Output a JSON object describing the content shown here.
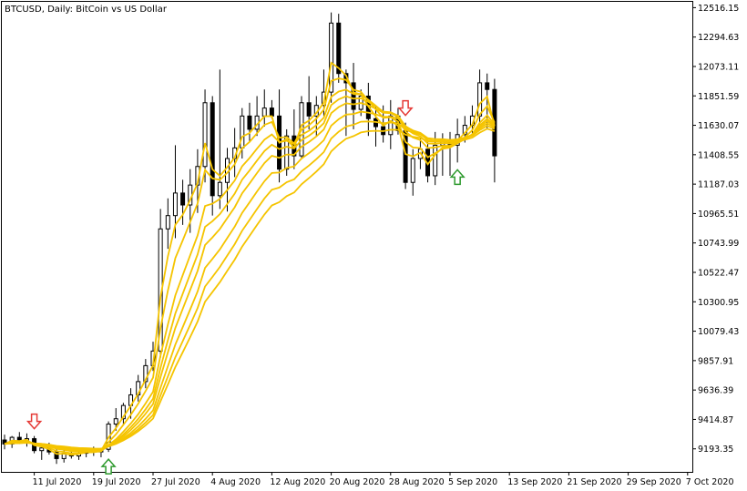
{
  "window": {
    "title": "BTCUSD, Daily:  BitCoin vs US Dollar"
  },
  "chart_data": {
    "type": "candlestick",
    "symbol": "BTCUSD",
    "timeframe": "Daily",
    "description": "BitCoin vs US Dollar",
    "ylim": [
      9020,
      12560
    ],
    "y_ticks": [
      "12516.15",
      "12294.63",
      "12073.11",
      "11851.59",
      "11630.07",
      "11408.55",
      "11187.03",
      "10965.51",
      "10743.99",
      "10522.47",
      "10300.95",
      "10079.43",
      "9857.91",
      "9636.39",
      "9414.87",
      "9193.35"
    ],
    "x_ticks": [
      {
        "label": "11 Jul 2020",
        "index": 4
      },
      {
        "label": "19 Jul 2020",
        "index": 12
      },
      {
        "label": "27 Jul 2020",
        "index": 20
      },
      {
        "label": "4 Aug 2020",
        "index": 28
      },
      {
        "label": "12 Aug 2020",
        "index": 36
      },
      {
        "label": "20 Aug 2020",
        "index": 44
      },
      {
        "label": "28 Aug 2020",
        "index": 52
      },
      {
        "label": "5 Sep 2020",
        "index": 60
      },
      {
        "label": "13 Sep 2020",
        "index": 68
      },
      {
        "label": "21 Sep 2020",
        "index": 76
      },
      {
        "label": "29 Sep 2020",
        "index": 84
      },
      {
        "label": "7 Oct 2020",
        "index": 92
      }
    ],
    "candles": [
      {
        "o": 9260,
        "h": 9300,
        "l": 9190,
        "c": 9230
      },
      {
        "o": 9230,
        "h": 9290,
        "l": 9200,
        "c": 9280
      },
      {
        "o": 9280,
        "h": 9320,
        "l": 9230,
        "c": 9250
      },
      {
        "o": 9250,
        "h": 9310,
        "l": 9210,
        "c": 9270
      },
      {
        "o": 9270,
        "h": 9290,
        "l": 9160,
        "c": 9180
      },
      {
        "o": 9180,
        "h": 9230,
        "l": 9110,
        "c": 9200
      },
      {
        "o": 9200,
        "h": 9240,
        "l": 9150,
        "c": 9170
      },
      {
        "o": 9170,
        "h": 9200,
        "l": 9080,
        "c": 9120
      },
      {
        "o": 9120,
        "h": 9190,
        "l": 9090,
        "c": 9160
      },
      {
        "o": 9160,
        "h": 9200,
        "l": 9120,
        "c": 9140
      },
      {
        "o": 9140,
        "h": 9180,
        "l": 9110,
        "c": 9160
      },
      {
        "o": 9160,
        "h": 9200,
        "l": 9130,
        "c": 9180
      },
      {
        "o": 9180,
        "h": 9210,
        "l": 9140,
        "c": 9170
      },
      {
        "o": 9170,
        "h": 9200,
        "l": 9130,
        "c": 9190
      },
      {
        "o": 9190,
        "h": 9400,
        "l": 9170,
        "c": 9380
      },
      {
        "o": 9380,
        "h": 9500,
        "l": 9330,
        "c": 9420
      },
      {
        "o": 9420,
        "h": 9540,
        "l": 9380,
        "c": 9520
      },
      {
        "o": 9520,
        "h": 9650,
        "l": 9420,
        "c": 9600
      },
      {
        "o": 9600,
        "h": 9750,
        "l": 9550,
        "c": 9700
      },
      {
        "o": 9700,
        "h": 9870,
        "l": 9650,
        "c": 9820
      },
      {
        "o": 9820,
        "h": 10000,
        "l": 9780,
        "c": 9930
      },
      {
        "o": 9930,
        "h": 11000,
        "l": 9880,
        "c": 10850
      },
      {
        "o": 10850,
        "h": 11080,
        "l": 10700,
        "c": 10950
      },
      {
        "o": 10950,
        "h": 11480,
        "l": 10780,
        "c": 11120
      },
      {
        "o": 11120,
        "h": 11220,
        "l": 10880,
        "c": 11030
      },
      {
        "o": 11030,
        "h": 11300,
        "l": 10820,
        "c": 11180
      },
      {
        "o": 11180,
        "h": 11450,
        "l": 10970,
        "c": 11320
      },
      {
        "o": 11320,
        "h": 11900,
        "l": 11200,
        "c": 11800
      },
      {
        "o": 11800,
        "h": 11850,
        "l": 10950,
        "c": 11100
      },
      {
        "o": 11100,
        "h": 12050,
        "l": 11000,
        "c": 11200
      },
      {
        "o": 11200,
        "h": 11460,
        "l": 10980,
        "c": 11380
      },
      {
        "o": 11380,
        "h": 11610,
        "l": 11240,
        "c": 11460
      },
      {
        "o": 11460,
        "h": 11760,
        "l": 11380,
        "c": 11700
      },
      {
        "o": 11700,
        "h": 11800,
        "l": 11500,
        "c": 11600
      },
      {
        "o": 11600,
        "h": 11850,
        "l": 11550,
        "c": 11700
      },
      {
        "o": 11700,
        "h": 11900,
        "l": 11620,
        "c": 11760
      },
      {
        "o": 11760,
        "h": 11820,
        "l": 11680,
        "c": 11700
      },
      {
        "o": 11700,
        "h": 11900,
        "l": 11200,
        "c": 11300
      },
      {
        "o": 11300,
        "h": 11600,
        "l": 11250,
        "c": 11550
      },
      {
        "o": 11550,
        "h": 11750,
        "l": 11300,
        "c": 11400
      },
      {
        "o": 11400,
        "h": 11850,
        "l": 11380,
        "c": 11800
      },
      {
        "o": 11800,
        "h": 12000,
        "l": 11600,
        "c": 11700
      },
      {
        "o": 11700,
        "h": 11850,
        "l": 11550,
        "c": 11780
      },
      {
        "o": 11780,
        "h": 12050,
        "l": 11700,
        "c": 11880
      },
      {
        "o": 11880,
        "h": 12480,
        "l": 11800,
        "c": 12400
      },
      {
        "o": 12400,
        "h": 12470,
        "l": 11950,
        "c": 12020
      },
      {
        "o": 12020,
        "h": 12050,
        "l": 11550,
        "c": 11950
      },
      {
        "o": 11950,
        "h": 12100,
        "l": 11600,
        "c": 11750
      },
      {
        "o": 11750,
        "h": 11900,
        "l": 11700,
        "c": 11850
      },
      {
        "o": 11850,
        "h": 11950,
        "l": 11550,
        "c": 11680
      },
      {
        "o": 11680,
        "h": 11780,
        "l": 11470,
        "c": 11620
      },
      {
        "o": 11620,
        "h": 11780,
        "l": 11500,
        "c": 11560
      },
      {
        "o": 11560,
        "h": 11820,
        "l": 11450,
        "c": 11700
      },
      {
        "o": 11700,
        "h": 11760,
        "l": 11560,
        "c": 11590
      },
      {
        "o": 11590,
        "h": 11650,
        "l": 11150,
        "c": 11200
      },
      {
        "o": 11200,
        "h": 11450,
        "l": 11100,
        "c": 11380
      },
      {
        "o": 11380,
        "h": 11550,
        "l": 11300,
        "c": 11450
      },
      {
        "o": 11450,
        "h": 11520,
        "l": 11200,
        "c": 11250
      },
      {
        "o": 11250,
        "h": 11580,
        "l": 11180,
        "c": 11480
      },
      {
        "o": 11480,
        "h": 11570,
        "l": 11250,
        "c": 11520
      },
      {
        "o": 11520,
        "h": 11580,
        "l": 11250,
        "c": 11480
      },
      {
        "o": 11480,
        "h": 11680,
        "l": 11350,
        "c": 11560
      },
      {
        "o": 11560,
        "h": 11700,
        "l": 11500,
        "c": 11630
      },
      {
        "o": 11630,
        "h": 11780,
        "l": 11550,
        "c": 11700
      },
      {
        "o": 11700,
        "h": 12050,
        "l": 11600,
        "c": 11950
      },
      {
        "o": 11950,
        "h": 12020,
        "l": 11600,
        "c": 11900
      },
      {
        "o": 11900,
        "h": 11980,
        "l": 11200,
        "c": 11400
      }
    ],
    "y_ticks_note": "",
    "ma_series": [
      {
        "color": "#f5c400"
      },
      {
        "color": "#f5c400"
      },
      {
        "color": "#f5c400"
      },
      {
        "color": "#f5c400"
      },
      {
        "color": "#f5c400"
      },
      {
        "color": "#f5c400"
      },
      {
        "color": "#f5c400"
      },
      {
        "color": "#f5c400"
      }
    ],
    "colors": {
      "bull_body": "#ffffff",
      "bear_body": "#000000",
      "wick": "#000000",
      "ma": "#f5c400",
      "arrow_up": "#2e9a2e",
      "arrow_down": "#e53935"
    }
  }
}
